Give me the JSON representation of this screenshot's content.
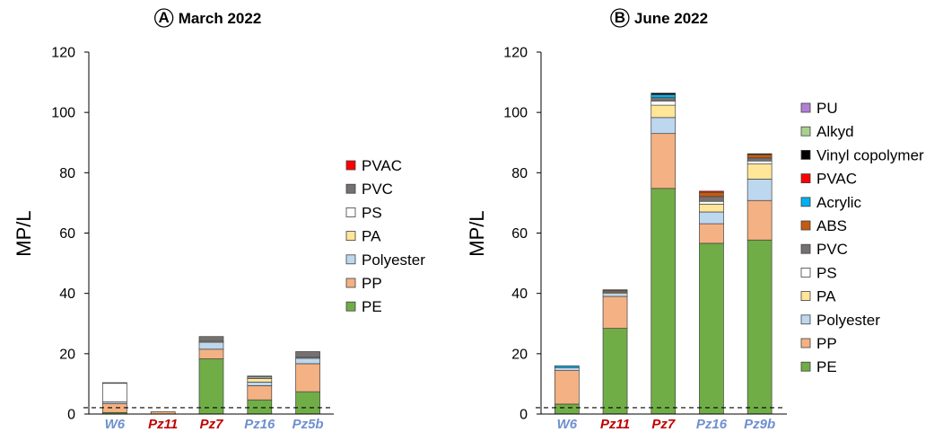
{
  "colors": {
    "PE": "#70ad47",
    "PP": "#f4b183",
    "Polyester": "#bdd7ee",
    "PA": "#ffe699",
    "PS": "#ffffff",
    "PVC": "#767171",
    "ABS": "#c55a11",
    "Acrylic": "#00b0f0",
    "PVAC": "#ff0000",
    "Vinyl copolymer": "#000000",
    "Alkyd": "#a9d18e",
    "PU": "#b27fd6",
    "label_blue": "#6f8fce",
    "label_red": "#c00000"
  },
  "chart_data": [
    {
      "type": "bar",
      "stacked": true,
      "panel_letter": "A",
      "title": "March 2022",
      "ylabel": "MP/L",
      "ylim": [
        0,
        120
      ],
      "yticks": [
        "0",
        "20",
        "40",
        "60",
        "80",
        "100",
        "120"
      ],
      "threshold": 2.1,
      "categories": [
        "W6",
        "Pz11",
        "Pz7",
        "Pz16",
        "Pz5b"
      ],
      "category_colors": [
        "blue",
        "red",
        "red",
        "blue",
        "blue"
      ],
      "legend": [
        "PVAC",
        "PVC",
        "PS",
        "PA",
        "Polyester",
        "PP",
        "PE"
      ],
      "series": [
        {
          "name": "PE",
          "values": [
            0.5,
            0,
            18.3,
            4.7,
            7.4
          ]
        },
        {
          "name": "PP",
          "values": [
            3.0,
            0.8,
            3.2,
            4.7,
            9.3
          ]
        },
        {
          "name": "Polyester",
          "values": [
            0.6,
            0,
            2.3,
            1.2,
            1.8
          ]
        },
        {
          "name": "PA",
          "values": [
            0,
            0,
            0.3,
            1.2,
            0
          ]
        },
        {
          "name": "PS",
          "values": [
            6.1,
            0,
            0,
            0.4,
            0.3
          ]
        },
        {
          "name": "PVC",
          "values": [
            0.2,
            0,
            1.6,
            0.4,
            1.9
          ]
        },
        {
          "name": "PVAC",
          "values": [
            0,
            0,
            0,
            0,
            0
          ]
        }
      ]
    },
    {
      "type": "bar",
      "stacked": true,
      "panel_letter": "B",
      "title": "June 2022",
      "ylabel": "MP/L",
      "ylim": [
        0,
        120
      ],
      "yticks": [
        "0",
        "20",
        "40",
        "60",
        "80",
        "100",
        "120"
      ],
      "threshold": 2.1,
      "categories": [
        "W6",
        "Pz11",
        "Pz7",
        "Pz16",
        "Pz9b"
      ],
      "category_colors": [
        "blue",
        "red",
        "red",
        "blue",
        "blue"
      ],
      "legend": [
        "PU",
        "Alkyd",
        "Vinyl copolymer",
        "PVAC",
        "Acrylic",
        "ABS",
        "PVC",
        "PS",
        "PA",
        "Polyester",
        "PP",
        "PE"
      ],
      "series": [
        {
          "name": "PE",
          "values": [
            3.3,
            28.4,
            74.8,
            56.6,
            57.7
          ]
        },
        {
          "name": "PP",
          "values": [
            11.1,
            10.6,
            18.2,
            6.5,
            13.1
          ]
        },
        {
          "name": "Polyester",
          "values": [
            1.0,
            1.0,
            5.3,
            3.9,
            7.1
          ]
        },
        {
          "name": "PA",
          "values": [
            0,
            0.4,
            4.1,
            2.6,
            5.0
          ]
        },
        {
          "name": "PS",
          "values": [
            0,
            0.3,
            1.4,
            0.9,
            1.0
          ]
        },
        {
          "name": "PVC",
          "values": [
            0,
            0.2,
            1.1,
            1.6,
            1.0
          ]
        },
        {
          "name": "ABS",
          "values": [
            0,
            0.3,
            0,
            1.4,
            1.1
          ]
        },
        {
          "name": "Acrylic",
          "values": [
            0.6,
            0,
            1.0,
            0,
            0
          ]
        },
        {
          "name": "PVAC",
          "values": [
            0,
            0,
            0,
            0.4,
            0
          ]
        },
        {
          "name": "Vinyl copolymer",
          "values": [
            0,
            0,
            0.5,
            0,
            0.3
          ]
        },
        {
          "name": "Alkyd",
          "values": [
            0,
            0,
            0,
            0,
            0
          ]
        },
        {
          "name": "PU",
          "values": [
            0,
            0,
            0,
            0,
            0
          ]
        }
      ]
    }
  ]
}
